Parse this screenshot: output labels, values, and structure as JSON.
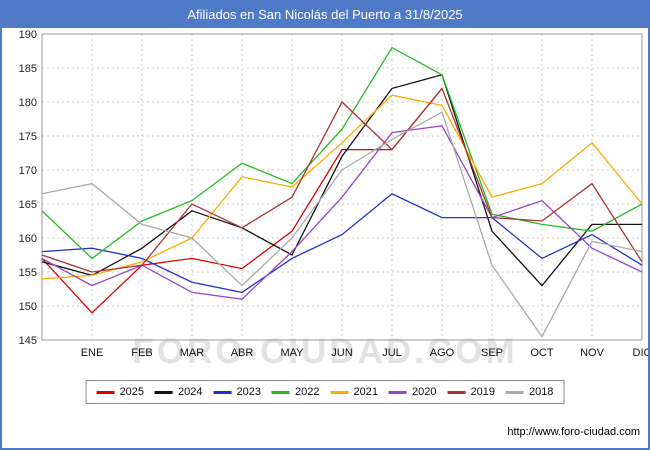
{
  "header": {
    "title": "Afiliados en San Nicolás del Puerto a 31/8/2025"
  },
  "watermark": {
    "text": "FORO-CIUDAD.COM"
  },
  "footer": {
    "url": "http://www.foro-ciudad.com"
  },
  "colors": {
    "header_bg": "#4e7ac7",
    "watermark": "#cccccc",
    "grid": "#cccccc",
    "plot_border": "#999999"
  },
  "chart_data": {
    "type": "line",
    "title": "Afiliados en San Nicolás del Puerto a 31/8/2025",
    "xlabel": "",
    "ylabel": "",
    "categories": [
      "ENE",
      "FEB",
      "MAR",
      "ABR",
      "MAY",
      "JUN",
      "JUL",
      "AGO",
      "SEP",
      "OCT",
      "NOV",
      "DIC"
    ],
    "ylim": [
      145,
      190
    ],
    "ystep": 5,
    "grid": true,
    "legend_position": "bottom",
    "series": [
      {
        "name": "2025",
        "color": "#e00000",
        "start": 157,
        "values": [
          149,
          156,
          157,
          155.5,
          161,
          173,
          173,
          182,
          null,
          null,
          null,
          null
        ]
      },
      {
        "name": "2024",
        "color": "#111111",
        "start": 156.5,
        "values": [
          154.5,
          158.5,
          164,
          161.5,
          157.5,
          172,
          182,
          184,
          161,
          153,
          162,
          162
        ]
      },
      {
        "name": "2023",
        "color": "#2233cc",
        "start": 158,
        "values": [
          158.5,
          157,
          153.5,
          152,
          157,
          160.5,
          166.5,
          163,
          163,
          157,
          160.5,
          156
        ]
      },
      {
        "name": "2022",
        "color": "#22bb22",
        "start": 164,
        "values": [
          157,
          162.5,
          165.5,
          171,
          168,
          176,
          188,
          184,
          163.5,
          162,
          161,
          165
        ]
      },
      {
        "name": "2021",
        "color": "#ffaa00",
        "start": 154,
        "values": [
          154.5,
          156.5,
          160,
          169,
          167.5,
          174,
          181,
          179.5,
          166,
          168,
          174,
          165
        ]
      },
      {
        "name": "2020",
        "color": "#9944cc",
        "start": 157,
        "values": [
          153,
          156,
          152,
          151,
          158,
          166,
          175.5,
          176.5,
          163,
          165.5,
          158.5,
          155
        ]
      },
      {
        "name": "2019",
        "color": "#aa3333",
        "start": 157.5,
        "values": [
          155,
          156,
          165,
          161.5,
          166,
          180,
          173,
          182,
          163,
          162.5,
          168,
          156.5
        ]
      },
      {
        "name": "2018",
        "color": "#aaaaaa",
        "start": 166.5,
        "values": [
          168,
          162,
          160,
          153,
          160,
          170,
          174.5,
          178.5,
          156,
          145.5,
          159.5,
          158
        ]
      }
    ]
  }
}
